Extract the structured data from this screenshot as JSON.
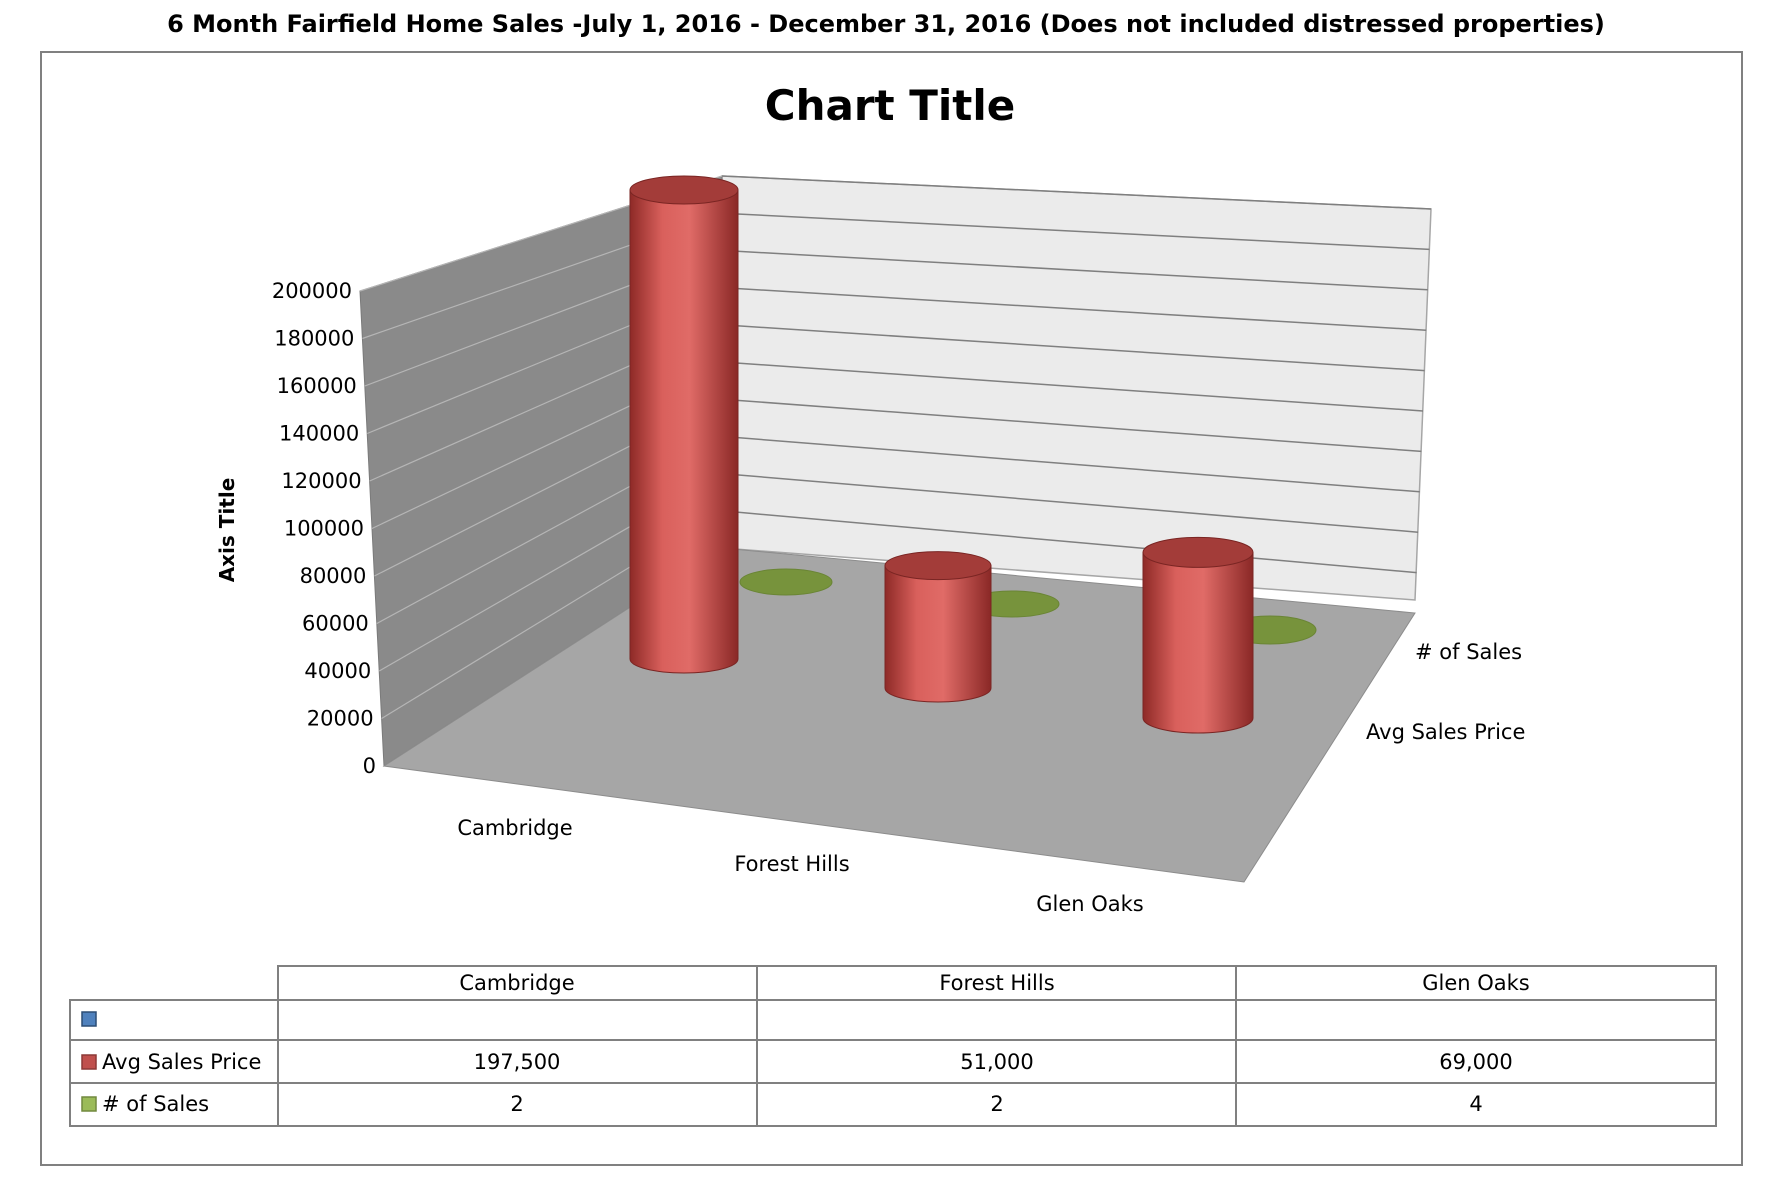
{
  "page_title": "6 Month Fairfield Home Sales  -July  1, 2016 - December 31, 2016 (Does not included distressed properties)",
  "chart_data": {
    "type": "bar",
    "title": "Chart Title",
    "ylabel": "Axis Title",
    "xlabel": "",
    "ylim": [
      0,
      200000
    ],
    "y_ticks": [
      0,
      20000,
      40000,
      60000,
      80000,
      100000,
      120000,
      140000,
      160000,
      180000,
      200000
    ],
    "categories": [
      "Cambridge",
      "Forest Hills",
      "Glen Oaks"
    ],
    "series": [
      {
        "name": "Avg Sales Price",
        "values": [
          197500,
          51000,
          69000
        ],
        "labels": [
          "197,500",
          "51,000",
          "69,000"
        ],
        "color": "#c0504d"
      },
      {
        "name": "# of Sales",
        "values": [
          2,
          2,
          4
        ],
        "labels": [
          "2",
          "2",
          "4"
        ],
        "color": "#9bbb59"
      }
    ],
    "depth_labels": [
      "# of Sales",
      "Avg Sales Price"
    ],
    "data_table": {
      "blank_row_marker_color": "#4f81bd"
    },
    "grid": true
  }
}
